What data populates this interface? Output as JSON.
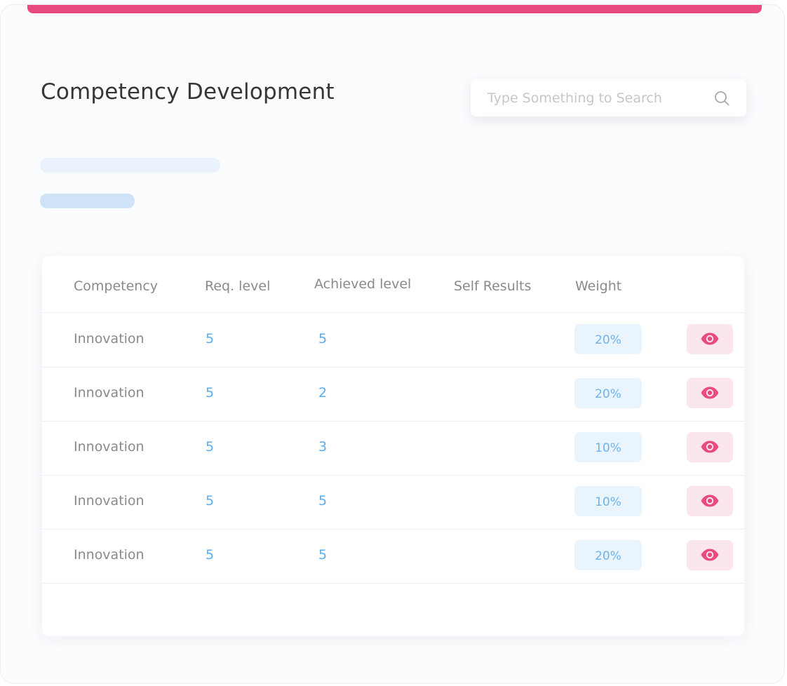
{
  "colors": {
    "accent": "#e94a7f",
    "number": "#5aacef",
    "badge_bg": "#eaf4fd",
    "view_bg": "#fce6ee"
  },
  "page": {
    "title": "Competency Development"
  },
  "search": {
    "placeholder": "Type Something to Search",
    "icon": "search-icon"
  },
  "table": {
    "headers": {
      "competency": "Competency",
      "req_level": "Req. level",
      "achieved_level": "Achieved level",
      "self_results": "Self Results",
      "weight": "Weight"
    },
    "rows": [
      {
        "competency": "Innovation",
        "req_level": "5",
        "achieved_level": "5",
        "self_results": "",
        "weight": "20%",
        "action_icon": "eye-icon"
      },
      {
        "competency": "Innovation",
        "req_level": "5",
        "achieved_level": "2",
        "self_results": "",
        "weight": "20%",
        "action_icon": "eye-icon"
      },
      {
        "competency": "Innovation",
        "req_level": "5",
        "achieved_level": "3",
        "self_results": "",
        "weight": "10%",
        "action_icon": "eye-icon"
      },
      {
        "competency": "Innovation",
        "req_level": "5",
        "achieved_level": "5",
        "self_results": "",
        "weight": "10%",
        "action_icon": "eye-icon"
      },
      {
        "competency": "Innovation",
        "req_level": "5",
        "achieved_level": "5",
        "self_results": "",
        "weight": "20%",
        "action_icon": "eye-icon"
      }
    ]
  }
}
